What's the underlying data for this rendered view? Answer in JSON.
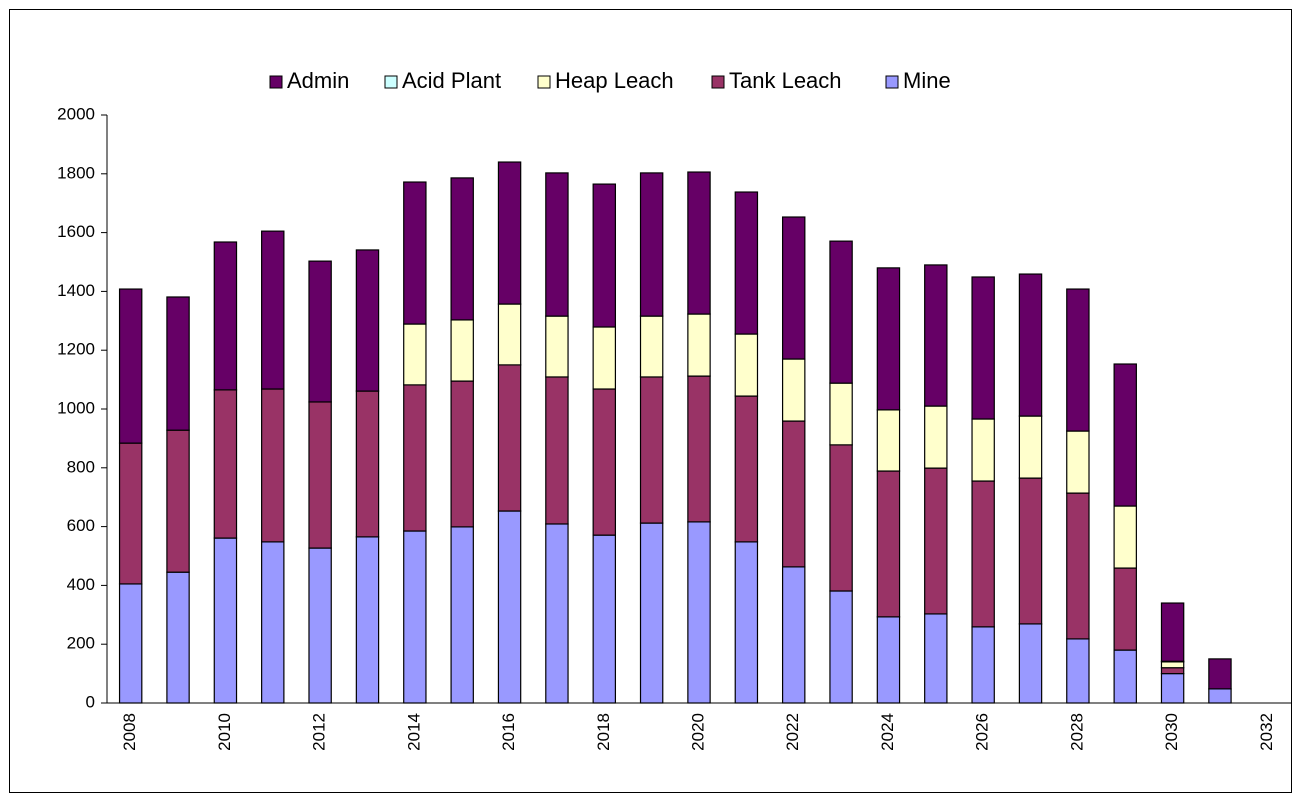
{
  "chart_data": {
    "type": "stacked_bar",
    "categories": [
      "2008",
      null,
      "2010",
      null,
      "2012",
      null,
      "2014",
      null,
      "2016",
      null,
      "2018",
      null,
      "2020",
      null,
      "2022",
      null,
      "2024",
      null,
      "2026",
      null,
      "2028",
      null,
      "2030",
      null,
      "2032"
    ],
    "series": [
      {
        "name": "Admin",
        "color": "#660066",
        "values": [
          524,
          453,
          503,
          537,
          479,
          480,
          483,
          483,
          483,
          487,
          486,
          487,
          483,
          483,
          483,
          483,
          483,
          480,
          483,
          483,
          483,
          483,
          198,
          102,
          null
        ]
      },
      {
        "name": "Acid Plant",
        "color": "#ccffff",
        "values": [
          0,
          0,
          0,
          0,
          0,
          0,
          0,
          0,
          0,
          0,
          0,
          0,
          0,
          0,
          0,
          0,
          0,
          0,
          0,
          0,
          0,
          0,
          2,
          0,
          null
        ]
      },
      {
        "name": "Heap Leach",
        "color": "#ffffcc",
        "values": [
          0,
          0,
          0,
          0,
          0,
          0,
          207,
          208,
          207,
          207,
          211,
          207,
          211,
          211,
          211,
          210,
          208,
          211,
          211,
          211,
          211,
          211,
          20,
          0,
          null
        ]
      },
      {
        "name": "Tank Leach",
        "color": "#993366",
        "values": [
          479,
          483,
          504,
          520,
          497,
          496,
          497,
          496,
          497,
          500,
          497,
          497,
          496,
          496,
          496,
          497,
          496,
          496,
          496,
          496,
          496,
          279,
          20,
          0,
          null
        ]
      },
      {
        "name": "Mine",
        "color": "#9999ff",
        "values": [
          405,
          445,
          561,
          548,
          527,
          565,
          585,
          599,
          653,
          609,
          571,
          612,
          616,
          548,
          463,
          381,
          293,
          303,
          259,
          269,
          218,
          180,
          100,
          48,
          null
        ]
      }
    ],
    "ylim": [
      0,
      2000
    ],
    "yticks": [
      0,
      200,
      400,
      600,
      800,
      1000,
      1200,
      1400,
      1600,
      1800,
      2000
    ],
    "grid": false,
    "legend": "top",
    "stack_order": "reverse"
  }
}
